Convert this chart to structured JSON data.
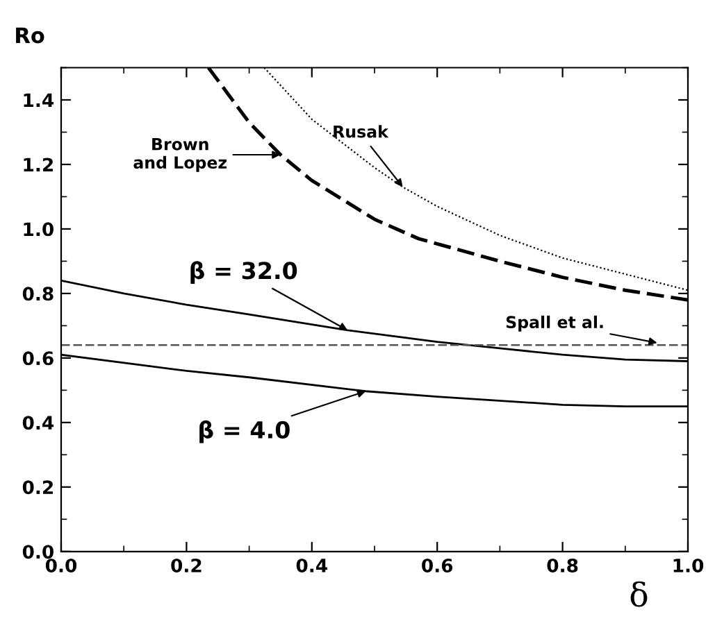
{
  "chart_data": {
    "type": "line",
    "xlabel": "δ",
    "ylabel": "Ro",
    "xlim": [
      0,
      1
    ],
    "ylim": [
      0,
      1.5
    ],
    "xticks": [
      {
        "value": 0,
        "label": "0.0"
      },
      0.2,
      0.4,
      0.6,
      0.8,
      {
        "value": 1,
        "label": "1.0"
      }
    ],
    "yticks": [
      {
        "value": 0,
        "label": "0.0"
      },
      0.2,
      0.4,
      0.6,
      0.8,
      {
        "value": 1,
        "label": "1.0"
      },
      1.2,
      1.4
    ],
    "grid": false,
    "legend": false,
    "series": [
      {
        "color": "#000000",
        "line_style": "dashed",
        "x": [
          0.235,
          0.3,
          0.35,
          0.4,
          0.5,
          0.57,
          0.7,
          0.8,
          0.9,
          1.0
        ],
        "values": [
          1.5,
          1.33,
          1.23,
          1.15,
          1.03,
          0.97,
          0.9,
          0.85,
          0.81,
          0.78
        ]
      },
      {
        "color": "#000000",
        "line_style": "dotted",
        "x": [
          0.324,
          0.4,
          0.5,
          0.545,
          0.6,
          0.7,
          0.8,
          0.9,
          1.0
        ],
        "values": [
          1.5,
          1.34,
          1.19,
          1.13,
          1.07,
          0.98,
          0.91,
          0.86,
          0.81
        ]
      },
      {
        "color": "#000000",
        "line_style": "solid",
        "x": [
          0,
          0.1,
          0.2,
          0.3,
          0.457,
          0.6,
          0.7,
          0.8,
          0.9,
          1.0
        ],
        "values": [
          0.84,
          0.8,
          0.765,
          0.735,
          0.686,
          0.65,
          0.63,
          0.61,
          0.595,
          0.59
        ]
      },
      {
        "color": "#000000",
        "line_style": "solid",
        "x": [
          0,
          0.2,
          0.3,
          0.486,
          0.6,
          0.8,
          0.9,
          1.0
        ],
        "values": [
          0.61,
          0.56,
          0.54,
          0.497,
          0.48,
          0.455,
          0.45,
          0.45
        ]
      }
    ],
    "ref_lines": [
      {
        "axis": "y",
        "value": 0.64,
        "color": "#555555",
        "line_style": "dashed"
      }
    ],
    "annotations": [
      "Brown\nand Lopez",
      {
        "text": "Rusak",
        "x": 0.545,
        "y": 1.13
      },
      {
        "text": "β = 32.0",
        "x": 0.457,
        "y": 0.686
      },
      {
        "text": "Spall et al.",
        "x": 0.951,
        "y": 0.647
      },
      {
        "text": "β = 4.0",
        "x": 0.486,
        "y": 0.497
      }
    ]
  }
}
